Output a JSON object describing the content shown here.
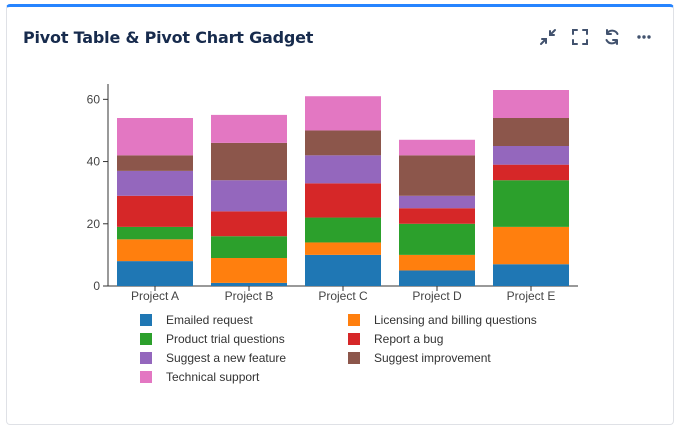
{
  "header": {
    "title": "Pivot Table & Pivot Chart Gadget",
    "actions": [
      {
        "name": "collapse-icon",
        "label": "Minimize"
      },
      {
        "name": "fullscreen-icon",
        "label": "Maximize"
      },
      {
        "name": "refresh-icon",
        "label": "Refresh"
      },
      {
        "name": "more-icon",
        "label": "More actions"
      }
    ]
  },
  "chart_data": {
    "type": "bar",
    "stacked": true,
    "title": "",
    "xlabel": "",
    "ylabel": "",
    "ylim": [
      0,
      63
    ],
    "yticks": [
      0,
      20,
      40,
      60
    ],
    "grid": false,
    "legend_position": "bottom",
    "categories": [
      "Project A",
      "Project B",
      "Project C",
      "Project D",
      "Project E"
    ],
    "series": [
      {
        "name": "Emailed request",
        "color": "#1f77b4",
        "values": [
          8,
          1,
          10,
          5,
          7
        ]
      },
      {
        "name": "Licensing and billing questions",
        "color": "#ff7f0e",
        "values": [
          7,
          8,
          4,
          5,
          12
        ]
      },
      {
        "name": "Product trial questions",
        "color": "#2ca02c",
        "values": [
          4,
          7,
          8,
          10,
          15
        ]
      },
      {
        "name": "Report a bug",
        "color": "#d62728",
        "values": [
          10,
          8,
          11,
          5,
          5
        ]
      },
      {
        "name": "Suggest a new feature",
        "color": "#9467bd",
        "values": [
          8,
          10,
          9,
          4,
          6
        ]
      },
      {
        "name": "Suggest improvement",
        "color": "#8c564b",
        "values": [
          5,
          12,
          8,
          13,
          9
        ]
      },
      {
        "name": "Technical support",
        "color": "#e377c2",
        "values": [
          12,
          9,
          11,
          5,
          9
        ]
      }
    ]
  }
}
